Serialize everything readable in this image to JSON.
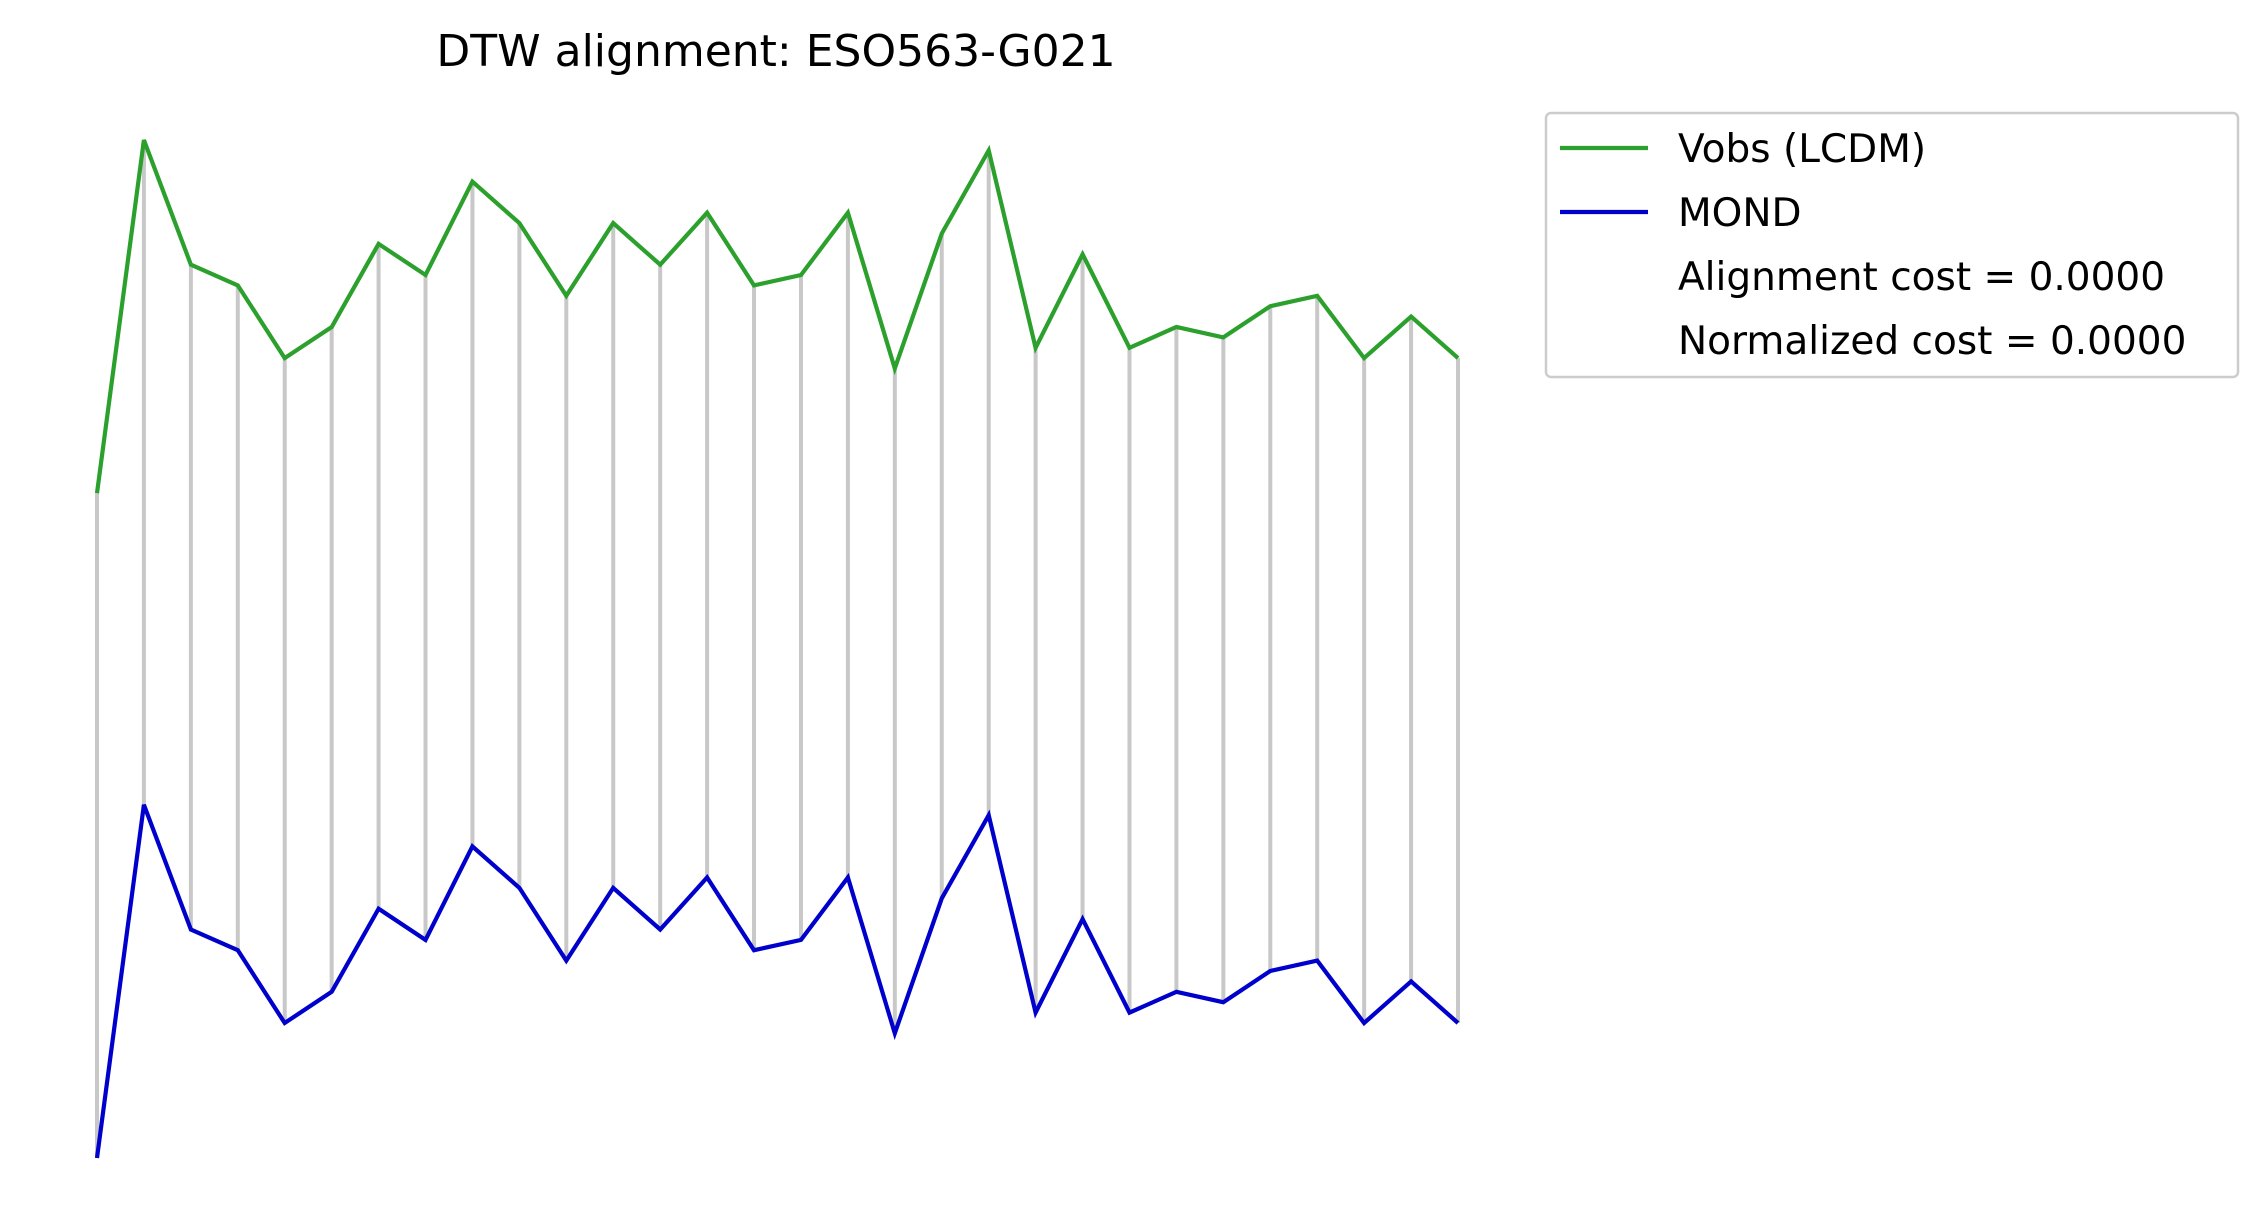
{
  "chart_data": {
    "type": "line",
    "title": "DTW alignment: ESO563-G021",
    "xlabel": "",
    "ylabel": "",
    "axes_visible": false,
    "grid": false,
    "legend_position": "upper-right-outside",
    "colors": {
      "lcdm": "#2ca02c",
      "mond": "#0000cc",
      "alignment": "#c8c8c8"
    },
    "x": [
      0,
      1,
      2,
      3,
      4,
      5,
      6,
      7,
      8,
      9,
      10,
      11,
      12,
      13,
      14,
      15,
      16,
      17,
      18,
      19,
      20,
      21,
      22,
      23,
      24,
      25,
      26,
      27,
      28,
      29
    ],
    "series": [
      {
        "key": "lcdm",
        "name": "Vobs (LCDM)",
        "values": [
          0.62,
          0.96,
          0.84,
          0.82,
          0.75,
          0.78,
          0.86,
          0.83,
          0.92,
          0.88,
          0.81,
          0.88,
          0.84,
          0.89,
          0.82,
          0.83,
          0.89,
          0.74,
          0.87,
          0.95,
          0.76,
          0.85,
          0.76,
          0.78,
          0.77,
          0.8,
          0.81,
          0.75,
          0.79,
          0.75
        ]
      },
      {
        "key": "mond",
        "name": "MOND",
        "values": [
          -0.02,
          0.32,
          0.2,
          0.18,
          0.11,
          0.14,
          0.22,
          0.19,
          0.28,
          0.24,
          0.17,
          0.24,
          0.2,
          0.25,
          0.18,
          0.19,
          0.25,
          0.1,
          0.23,
          0.31,
          0.12,
          0.21,
          0.12,
          0.14,
          0.13,
          0.16,
          0.17,
          0.11,
          0.15,
          0.11
        ]
      }
    ],
    "alignment_pairs": [
      [
        0,
        0
      ],
      [
        1,
        1
      ],
      [
        2,
        2
      ],
      [
        3,
        3
      ],
      [
        4,
        4
      ],
      [
        5,
        5
      ],
      [
        6,
        6
      ],
      [
        7,
        7
      ],
      [
        8,
        8
      ],
      [
        9,
        9
      ],
      [
        10,
        10
      ],
      [
        11,
        11
      ],
      [
        12,
        12
      ],
      [
        13,
        13
      ],
      [
        14,
        14
      ],
      [
        15,
        15
      ],
      [
        16,
        16
      ],
      [
        17,
        17
      ],
      [
        18,
        18
      ],
      [
        19,
        19
      ],
      [
        20,
        20
      ],
      [
        21,
        21
      ],
      [
        22,
        22
      ],
      [
        23,
        23
      ],
      [
        24,
        24
      ],
      [
        25,
        25
      ],
      [
        26,
        26
      ],
      [
        27,
        27
      ],
      [
        28,
        28
      ],
      [
        29,
        29
      ]
    ],
    "legend": {
      "entries": [
        {
          "label": "Vobs (LCDM)",
          "color": "#2ca02c",
          "marker": "line"
        },
        {
          "label": "MOND",
          "color": "#0000cc",
          "marker": "line"
        },
        {
          "label": "Alignment cost = 0.0000",
          "color": "",
          "marker": "none"
        },
        {
          "label": "Normalized cost = 0.0000",
          "color": "",
          "marker": "none"
        }
      ]
    }
  }
}
